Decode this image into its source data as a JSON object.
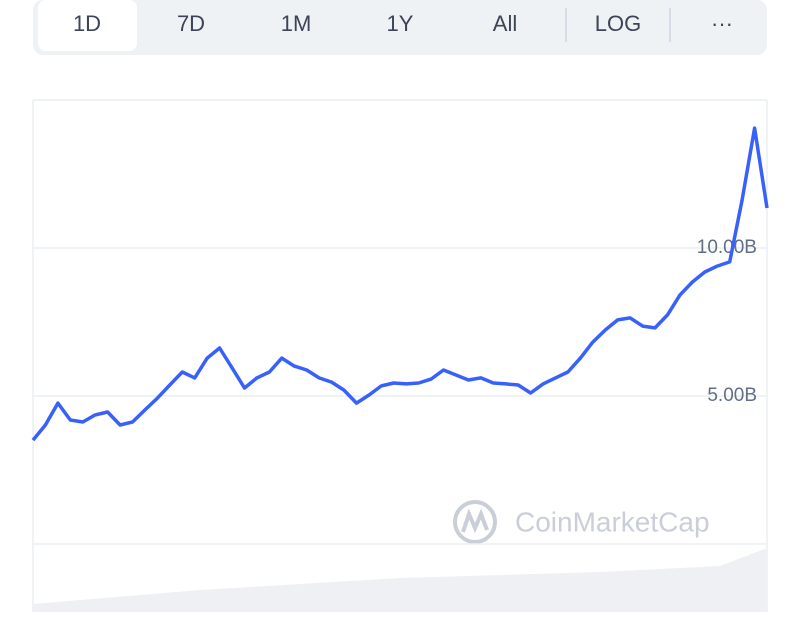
{
  "tabs": [
    "1D",
    "7D",
    "1M",
    "1Y",
    "All",
    "LOG",
    "···"
  ],
  "watermark": "CoinMarketCap",
  "chart_data": {
    "type": "line",
    "series": [
      {
        "color": "#3861fb",
        "values": [
          3510000000,
          4020000000,
          4760000000,
          4190000000,
          4120000000,
          4360000000,
          4460000000,
          4020000000,
          4120000000,
          4530000000,
          4930000000,
          5370000000,
          5810000000,
          5610000000,
          6280000000,
          6620000000,
          5950000000,
          5270000000,
          5610000000,
          5810000000,
          6280000000,
          6010000000,
          5880000000,
          5610000000,
          5470000000,
          5200000000,
          4760000000,
          5030000000,
          5340000000,
          5440000000,
          5410000000,
          5440000000,
          5570000000,
          5880000000,
          5710000000,
          5540000000,
          5610000000,
          5440000000,
          5410000000,
          5370000000,
          5100000000,
          5410000000,
          5610000000,
          5810000000,
          6280000000,
          6820000000,
          7230000000,
          7570000000,
          7640000000,
          7360000000,
          7300000000,
          7740000000,
          8410000000,
          8850000000,
          9190000000,
          9390000000,
          9530000000,
          11620000000,
          14050000000,
          11350000000
        ]
      }
    ],
    "ylim": [
      0,
      15000000000
    ],
    "yticks": [
      {
        "value": 5000000000,
        "label": "5.00B"
      },
      {
        "value": 10000000000,
        "label": "10.00B"
      }
    ],
    "grid": true
  }
}
